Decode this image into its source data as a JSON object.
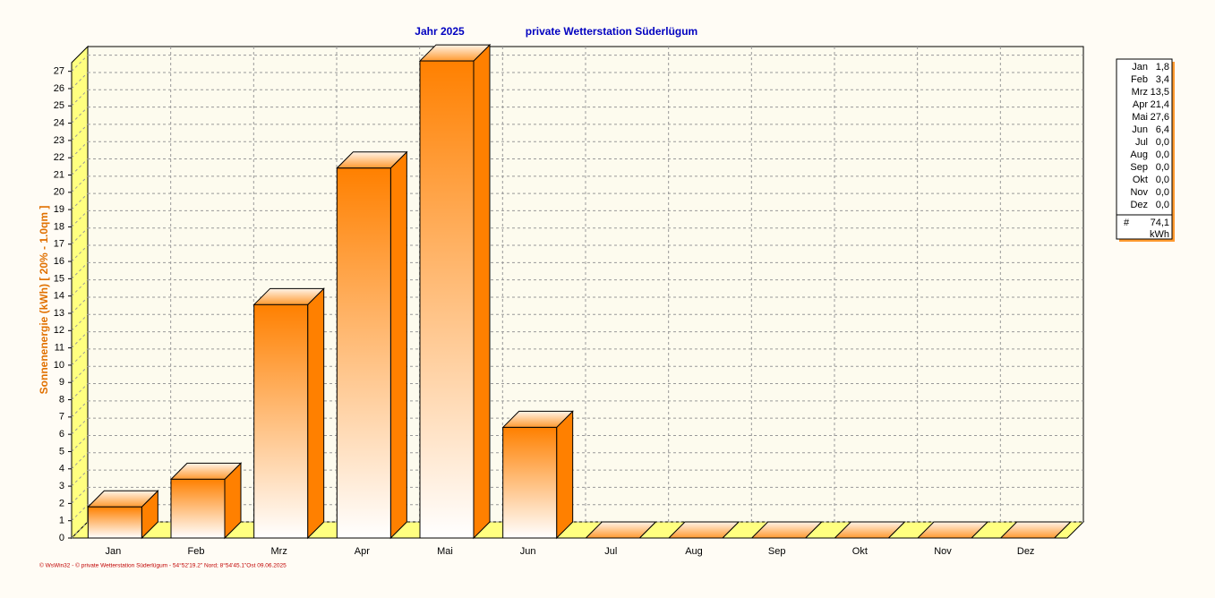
{
  "chart_data": {
    "type": "bar3d",
    "title": "Jahr  2025",
    "subtitle": "private Wetterstation Süderlügum",
    "y_label": "Sonnenenergie  (kWh)     [ 20% - 1.0qm ]",
    "footer": "© WsWin32  -  © private Wetterstation Süderlügum  -  54°52'19.2\" Nord; 8°54'45.1\"Ost   09.06.2025",
    "categories": [
      "Jan",
      "Feb",
      "Mrz",
      "Apr",
      "Mai",
      "Jun",
      "Jul",
      "Aug",
      "Sep",
      "Okt",
      "Nov",
      "Dez"
    ],
    "values": [
      1.8,
      3.4,
      13.5,
      21.4,
      27.6,
      6.4,
      0,
      0,
      0,
      0,
      0,
      0
    ],
    "value_labels": [
      "1,8",
      "3,4",
      "13,5",
      "21,4",
      "27,6",
      "6,4",
      "0,0",
      "0,0",
      "0,0",
      "0,0",
      "0,0",
      "0,0"
    ],
    "summary": {
      "symbol": "#",
      "total": "74,1",
      "unit": "kWh"
    },
    "color": "#ff8000",
    "ylim": [
      0,
      27.5
    ],
    "yticks": [
      0,
      1,
      2,
      3,
      4,
      5,
      6,
      7,
      8,
      9,
      10,
      11,
      12,
      13,
      14,
      15,
      16,
      17,
      18,
      19,
      20,
      21,
      22,
      23,
      24,
      25,
      26,
      27
    ],
    "grid": true
  }
}
